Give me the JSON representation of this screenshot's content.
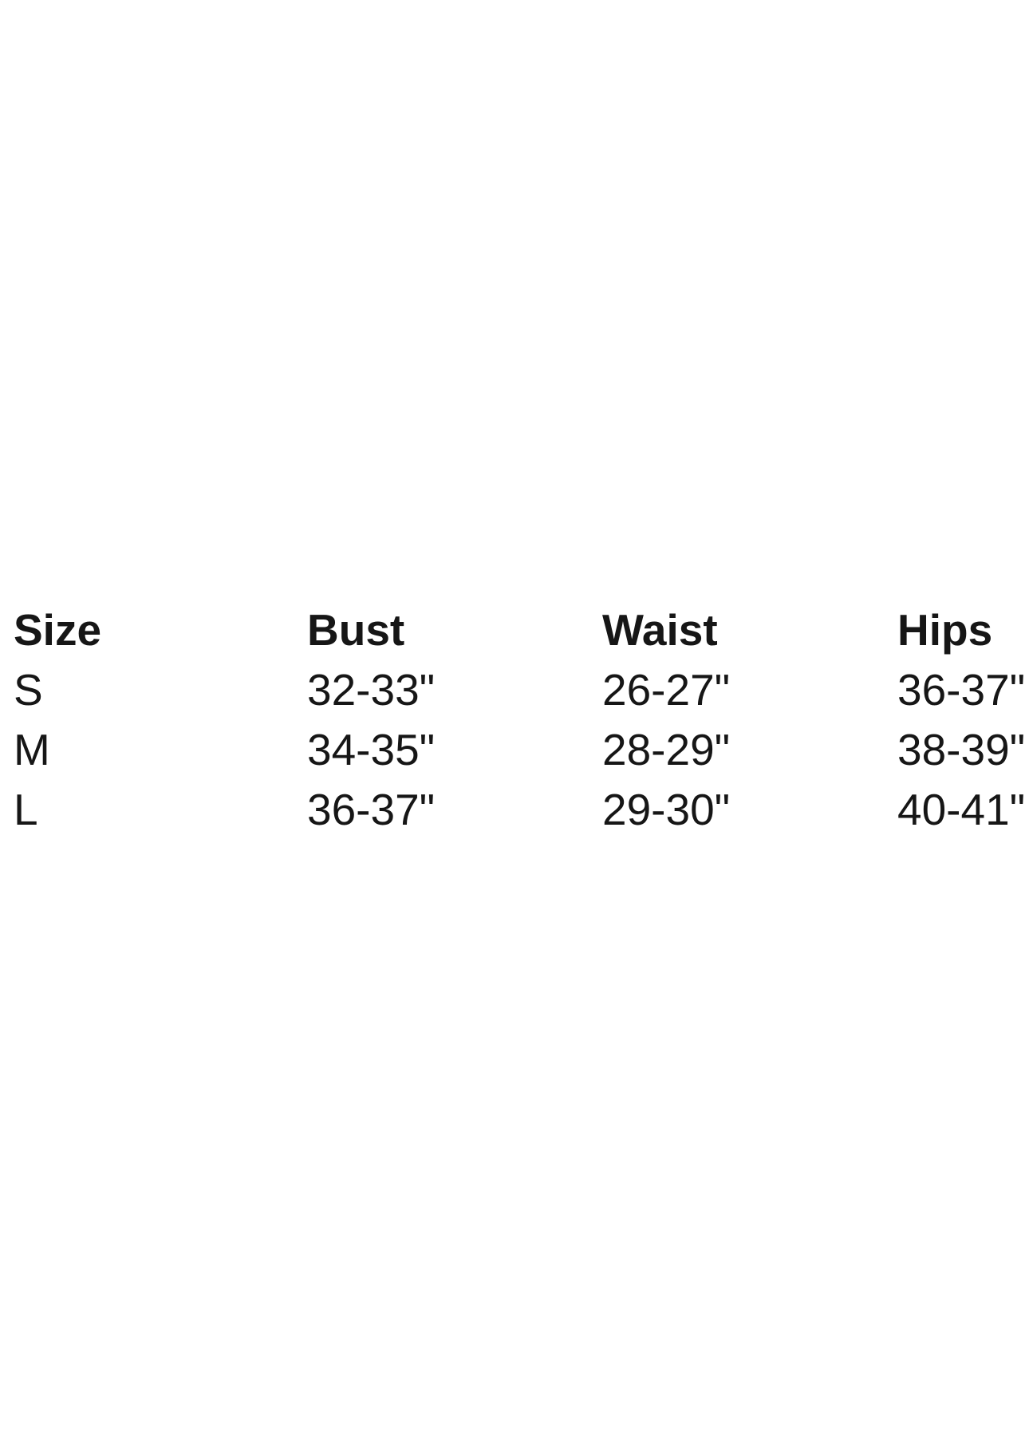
{
  "colors": {
    "background": "#ffffff",
    "text": "#161616"
  },
  "table": {
    "columns": [
      {
        "label": "Size"
      },
      {
        "label": "Bust"
      },
      {
        "label": "Waist"
      },
      {
        "label": "Hips"
      }
    ],
    "rows": [
      {
        "size": "S",
        "bust": "32-33\"",
        "waist": "26-27\"",
        "hips": "36-37\""
      },
      {
        "size": "M",
        "bust": "34-35\"",
        "waist": "28-29\"",
        "hips": "38-39\""
      },
      {
        "size": "L",
        "bust": "36-37\"",
        "waist": "29-30\"",
        "hips": "40-41\""
      }
    ]
  }
}
